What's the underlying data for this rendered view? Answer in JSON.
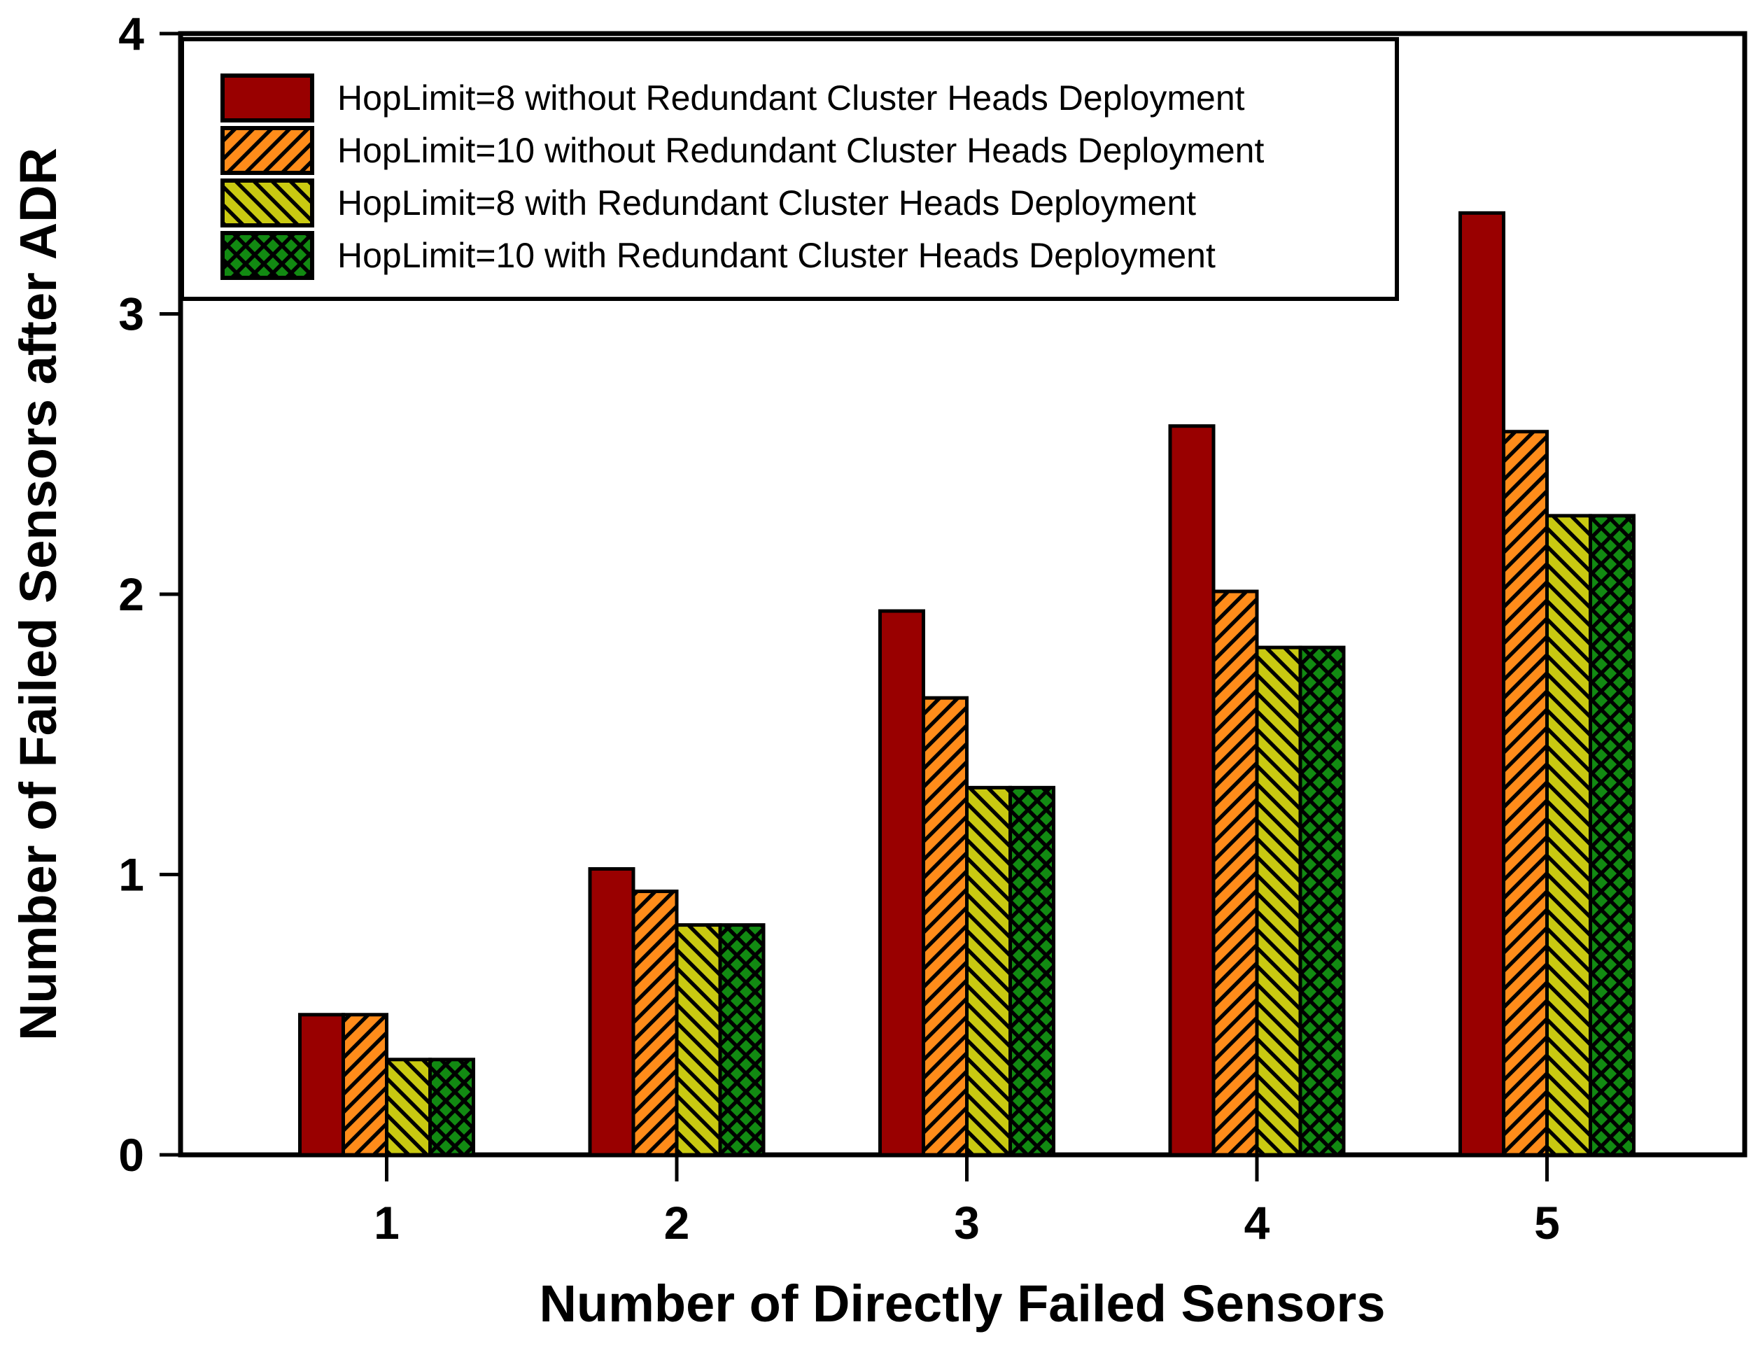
{
  "page": {
    "background_color": "#ffffff",
    "frame_color": "#000000"
  },
  "chart_data": {
    "type": "bar",
    "title": "",
    "xlabel": "Number of Directly Failed Sensors",
    "ylabel": "Number of Failed Sensors after ADR",
    "categories": [
      "1",
      "2",
      "3",
      "4",
      "5"
    ],
    "ylim": [
      0,
      4
    ],
    "yticks": [
      "0",
      "1",
      "2",
      "3",
      "4"
    ],
    "grid": false,
    "legend_position": "top-left",
    "bar_outline_color": "#000000",
    "hatch_color": "#000000",
    "series": [
      {
        "name": "HopLimit=8 without Redundant Cluster Heads Deployment",
        "color": "#990000",
        "pattern": "solid",
        "values": [
          0.5,
          1.02,
          1.94,
          2.6,
          3.36
        ]
      },
      {
        "name": "HopLimit=10 without Redundant Cluster Heads Deployment",
        "color": "#FF8C1A",
        "pattern": "diag-right",
        "values": [
          0.5,
          0.94,
          1.63,
          2.01,
          2.58
        ]
      },
      {
        "name": "HopLimit=8 with Redundant Cluster Heads Deployment",
        "color": "#C9C911",
        "pattern": "diag-left",
        "values": [
          0.34,
          0.82,
          1.31,
          1.81,
          2.28
        ]
      },
      {
        "name": "HopLimit=10 with Redundant Cluster Heads Deployment",
        "color": "#128A12",
        "pattern": "cross",
        "values": [
          0.34,
          0.82,
          1.31,
          1.81,
          2.28
        ]
      }
    ]
  }
}
